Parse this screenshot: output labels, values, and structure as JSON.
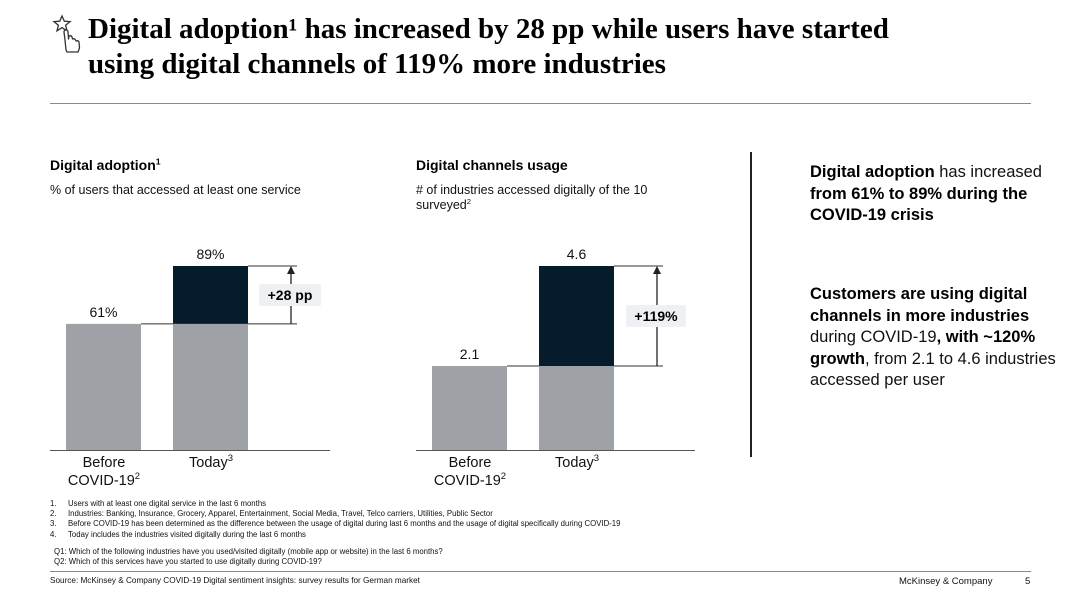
{
  "page": {
    "title_line1": "Digital adoption¹ has increased by 28 pp while users have started",
    "title_line2": "using digital channels of  119% more industries",
    "company": "McKinsey & Company",
    "page_number": "5",
    "source": "Source: McKinsey & Company COVID-19 Digital sentiment insights: survey results for German market"
  },
  "left_chart": {
    "title": "Digital adoption",
    "title_sup": "1",
    "subtitle": "% of users that accessed at least one service"
  },
  "right_chart": {
    "title": "Digital channels usage",
    "subtitle": "# of industries accessed digitally of the 10 surveyed",
    "subtitle_sup": "2"
  },
  "chart_data": [
    {
      "type": "bar",
      "title": "Digital adoption¹",
      "subtitle": "% of users that accessed at least one service",
      "categories": [
        "Before COVID-19²",
        "Today³"
      ],
      "values": [
        61,
        89
      ],
      "value_labels": [
        "61%",
        "89%"
      ],
      "increase_label": "+28 pp",
      "unit": "%",
      "ylim": [
        0,
        100
      ],
      "series": [
        {
          "name": "Base",
          "color": "#9ea1a6"
        },
        {
          "name": "Increase",
          "color": "#051c2c"
        }
      ]
    },
    {
      "type": "bar",
      "title": "Digital channels usage",
      "subtitle": "# of industries accessed digitally of the 10 surveyed²",
      "categories": [
        "Before COVID-19²",
        "Today³"
      ],
      "values": [
        2.1,
        4.6
      ],
      "value_labels": [
        "2.1",
        "4.6"
      ],
      "increase_label": "+119%",
      "unit": "industries",
      "ylim": [
        0,
        4.6
      ],
      "series": [
        {
          "name": "Base",
          "color": "#9ea1a6"
        },
        {
          "name": "Increase",
          "color": "#051c2c"
        }
      ]
    }
  ],
  "takeaways": [
    [
      {
        "t": "Digital adoption",
        "b": true
      },
      {
        "t": " has increased ",
        "b": false
      },
      {
        "t": "from 61% to 89% during the COVID-19 crisis",
        "b": true
      }
    ],
    [
      {
        "t": "Customers are using digital channels in more industries",
        "b": true
      },
      {
        "t": " during COVID-19",
        "b": false
      },
      {
        "t": ", with ~120% growth",
        "b": true
      },
      {
        "t": ", from 2.1 to 4.6 industries accessed per user",
        "b": false
      }
    ]
  ],
  "footnotes": [
    {
      "num": "1.",
      "text": "Users with at least one digital service in the last 6 months"
    },
    {
      "num": "2.",
      "text": "Industries: Banking, Insurance, Grocery, Apparel, Entertainment, Social Media, Travel, Telco carriers, Utilities, Public Sector"
    },
    {
      "num": "3.",
      "text": "Before COVID-19 has been determined as the difference between the usage of digital during last 6 months and the usage of digital specifically during COVID-19"
    },
    {
      "num": "4.",
      "text": "Today includes the industries visited digitally during the last 6 months"
    }
  ],
  "questions": [
    "Q1: Which of the following industries have you used/visited digitally (mobile app or website) in the last 6 months?",
    "Q2: Which of this services have you started to use digitally during COVID-19?"
  ],
  "colors": {
    "base_bar": "#9ea1a6",
    "increase_bar": "#051c2c",
    "label_box": "#eef0f3",
    "axis": "#555555"
  }
}
